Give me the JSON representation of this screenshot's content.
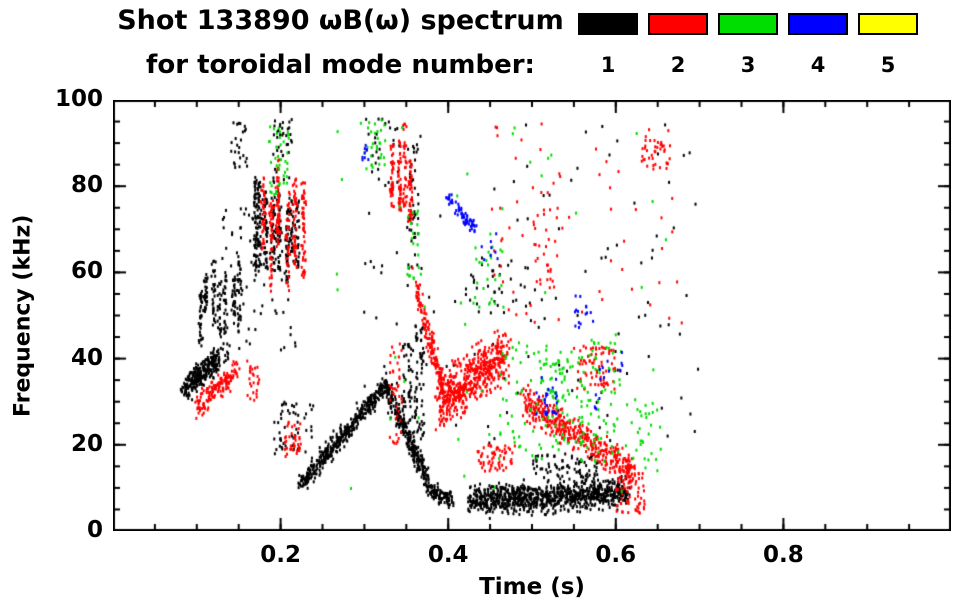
{
  "chart_data": {
    "type": "scatter",
    "title": "Shot 133890 ωB(ω) spectrum",
    "subtitle": "for toroidal mode number:",
    "xlabel": "Time (s)",
    "ylabel": "Frequency (kHz)",
    "xlim": [
      0,
      1
    ],
    "ylim": [
      0,
      100
    ],
    "xticks": [
      0.2,
      0.4,
      0.6,
      0.8
    ],
    "xtick_labels": [
      "0.2",
      "0.4",
      "0.6",
      "0.8"
    ],
    "x_minor_step": 0.05,
    "yticks": [
      0,
      20,
      40,
      60,
      80,
      100
    ],
    "ytick_labels": [
      "0",
      "20",
      "40",
      "60",
      "80",
      "100"
    ],
    "y_minor_step": 5,
    "grid": false,
    "legend_position": "top-right",
    "legend": [
      {
        "label": "1",
        "color": "#000000"
      },
      {
        "label": "2",
        "color": "#ff0000"
      },
      {
        "label": "3",
        "color": "#00dd00"
      },
      {
        "label": "4",
        "color": "#0000ff"
      },
      {
        "label": "5",
        "color": "#ffff00"
      }
    ],
    "series": [
      {
        "name": "1",
        "color": "#000000",
        "clusters": [
          {
            "mode": "ridge",
            "t": [
              0.085,
              0.125
            ],
            "f": [
              33,
              40
            ],
            "n": 260,
            "jt": 0.006,
            "jf": 2.5
          },
          {
            "mode": "streaks",
            "t": [
              0.1,
              0.155
            ],
            "f": [
              40,
              62
            ],
            "n": 220,
            "k": 7
          },
          {
            "mode": "streaks",
            "t": [
              0.165,
              0.225
            ],
            "f": [
              55,
              80
            ],
            "n": 320,
            "k": 8
          },
          {
            "mode": "blob",
            "t": [
              0.14,
              0.16
            ],
            "f": [
              84,
              97
            ],
            "n": 25
          },
          {
            "mode": "blob",
            "t": [
              0.19,
              0.215
            ],
            "f": [
              80,
              96
            ],
            "n": 35
          },
          {
            "mode": "blob",
            "t": [
              0.19,
              0.24
            ],
            "f": [
              18,
              30
            ],
            "n": 50
          },
          {
            "mode": "blob",
            "t": [
              0.13,
              0.22
            ],
            "f": [
              40,
              75
            ],
            "n": 80
          },
          {
            "mode": "ridge",
            "t": [
              0.225,
              0.325
            ],
            "f": [
              11,
              34
            ],
            "n": 420,
            "jt": 0.004,
            "jf": 2.2
          },
          {
            "mode": "ridge",
            "t": [
              0.325,
              0.375
            ],
            "f": [
              34,
              12
            ],
            "n": 260,
            "jt": 0.004,
            "jf": 2.5
          },
          {
            "mode": "streaks",
            "t": [
              0.345,
              0.37
            ],
            "f": [
              15,
              60
            ],
            "n": 120,
            "k": 4
          },
          {
            "mode": "blob",
            "t": [
              0.35,
              0.365
            ],
            "f": [
              60,
              90
            ],
            "n": 40
          },
          {
            "mode": "blob",
            "t": [
              0.3,
              0.34
            ],
            "f": [
              80,
              96
            ],
            "n": 25
          },
          {
            "mode": "ridge",
            "t": [
              0.375,
              0.405
            ],
            "f": [
              10,
              7
            ],
            "n": 100,
            "jt": 0.004,
            "jf": 2.0
          },
          {
            "mode": "ridge",
            "t": [
              0.425,
              0.615
            ],
            "f": [
              7,
              9
            ],
            "n": 900,
            "jt": 0.004,
            "jf": 3.2
          },
          {
            "mode": "blob",
            "t": [
              0.5,
              0.58
            ],
            "f": [
              12,
              18
            ],
            "n": 80
          },
          {
            "mode": "blob",
            "t": [
              0.42,
              0.5
            ],
            "f": [
              50,
              62
            ],
            "n": 30
          },
          {
            "mode": "blob",
            "t": [
              0.28,
              0.7
            ],
            "f": [
              20,
              95
            ],
            "n": 130
          }
        ]
      },
      {
        "name": "2",
        "color": "#ff0000",
        "clusters": [
          {
            "mode": "ridge",
            "t": [
              0.1,
              0.15
            ],
            "f": [
              29,
              38
            ],
            "n": 140,
            "jt": 0.006,
            "jf": 2.5
          },
          {
            "mode": "blob",
            "t": [
              0.16,
              0.175
            ],
            "f": [
              30,
              40
            ],
            "n": 25
          },
          {
            "mode": "streaks",
            "t": [
              0.175,
              0.23
            ],
            "f": [
              58,
              86
            ],
            "n": 280,
            "k": 6
          },
          {
            "mode": "blob",
            "t": [
              0.205,
              0.225
            ],
            "f": [
              17,
              26
            ],
            "n": 40
          },
          {
            "mode": "streaks",
            "t": [
              0.33,
              0.36
            ],
            "f": [
              70,
              95
            ],
            "n": 160,
            "k": 4
          },
          {
            "mode": "blob",
            "t": [
              0.33,
              0.345
            ],
            "f": [
              20,
              45
            ],
            "n": 40
          },
          {
            "mode": "ridge",
            "t": [
              0.36,
              0.395
            ],
            "f": [
              58,
              32
            ],
            "n": 160,
            "jt": 0.004,
            "jf": 3.0
          },
          {
            "mode": "ridge",
            "t": [
              0.39,
              0.47
            ],
            "f": [
              30,
              41
            ],
            "n": 520,
            "jt": 0.006,
            "jf": 6.0
          },
          {
            "mode": "blob",
            "t": [
              0.435,
              0.48
            ],
            "f": [
              14,
              20
            ],
            "n": 60
          },
          {
            "mode": "ridge",
            "t": [
              0.49,
              0.62
            ],
            "f": [
              30,
              14
            ],
            "n": 420,
            "jt": 0.005,
            "jf": 3.5
          },
          {
            "mode": "blob",
            "t": [
              0.55,
              0.6
            ],
            "f": [
              33,
              43
            ],
            "n": 70
          },
          {
            "mode": "blob",
            "t": [
              0.6,
              0.635
            ],
            "f": [
              4,
              14
            ],
            "n": 60
          },
          {
            "mode": "blob",
            "t": [
              0.5,
              0.53
            ],
            "f": [
              55,
              80
            ],
            "n": 30
          },
          {
            "mode": "blob",
            "t": [
              0.44,
              0.68
            ],
            "f": [
              48,
              95
            ],
            "n": 60
          },
          {
            "mode": "blob",
            "t": [
              0.63,
              0.665
            ],
            "f": [
              84,
              93
            ],
            "n": 40
          }
        ]
      },
      {
        "name": "3",
        "color": "#00dd00",
        "clusters": [
          {
            "mode": "blob",
            "t": [
              0.185,
              0.21
            ],
            "f": [
              78,
              96
            ],
            "n": 40
          },
          {
            "mode": "blob",
            "t": [
              0.295,
              0.325
            ],
            "f": [
              84,
              96
            ],
            "n": 30
          },
          {
            "mode": "blob",
            "t": [
              0.35,
              0.37
            ],
            "f": [
              58,
              75
            ],
            "n": 20
          },
          {
            "mode": "blob",
            "t": [
              0.43,
              0.47
            ],
            "f": [
              52,
              66
            ],
            "n": 25
          },
          {
            "mode": "blob",
            "t": [
              0.46,
              0.56
            ],
            "f": [
              16,
              44
            ],
            "n": 90
          },
          {
            "mode": "blob",
            "t": [
              0.51,
              0.545
            ],
            "f": [
              30,
              40
            ],
            "n": 35
          },
          {
            "mode": "blob",
            "t": [
              0.555,
              0.605
            ],
            "f": [
              16,
              46
            ],
            "n": 70
          },
          {
            "mode": "blob",
            "t": [
              0.61,
              0.655
            ],
            "f": [
              14,
              30
            ],
            "n": 30
          },
          {
            "mode": "blob",
            "t": [
              0.25,
              0.66
            ],
            "f": [
              5,
              95
            ],
            "n": 50
          }
        ]
      },
      {
        "name": "4",
        "color": "#0000ff",
        "clusters": [
          {
            "mode": "ridge",
            "t": [
              0.398,
              0.432
            ],
            "f": [
              78,
              70
            ],
            "n": 60,
            "jt": 0.003,
            "jf": 1.5
          },
          {
            "mode": "blob",
            "t": [
              0.505,
              0.53
            ],
            "f": [
              27,
              36
            ],
            "n": 25
          },
          {
            "mode": "blob",
            "t": [
              0.55,
              0.575
            ],
            "f": [
              46,
              55
            ],
            "n": 15
          },
          {
            "mode": "blob",
            "t": [
              0.57,
              0.61
            ],
            "f": [
              28,
              42
            ],
            "n": 15
          },
          {
            "mode": "blob",
            "t": [
              0.29,
              0.31
            ],
            "f": [
              86,
              93
            ],
            "n": 8
          },
          {
            "mode": "blob",
            "t": [
              0.44,
              0.46
            ],
            "f": [
              60,
              70
            ],
            "n": 8
          }
        ]
      },
      {
        "name": "5",
        "color": "#ffff00",
        "clusters": []
      }
    ]
  }
}
